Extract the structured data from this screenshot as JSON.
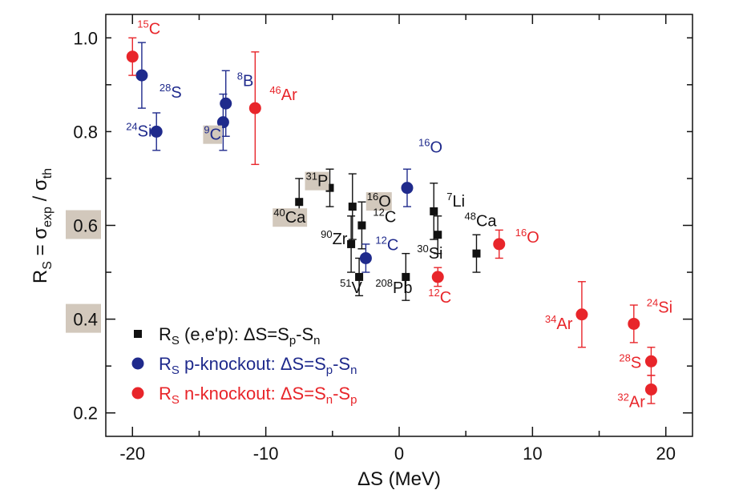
{
  "chart_data": {
    "type": "scatter",
    "xlabel_main": "ΔS (MeV)",
    "ylabel_parts": {
      "main": "R",
      "sub1": "S",
      "eq": " = σ",
      "sub2": "exp",
      "slash": " / σ",
      "sub3": "th"
    },
    "xlim": [
      -22,
      22
    ],
    "ylim": [
      0.15,
      1.05
    ],
    "x_ticks": [
      -20,
      -10,
      0,
      10,
      20
    ],
    "x_tick_labels": [
      "-20",
      "-10",
      "0",
      "10",
      "20"
    ],
    "y_ticks": [
      0.2,
      0.4,
      0.6,
      0.8,
      1.0
    ],
    "y_tick_labels": [
      "0.2",
      "0.4",
      "0.6",
      "0.8",
      "1.0"
    ],
    "highlighted_y_ticks": [
      0.4,
      0.6
    ],
    "highlight_color": "#d2c8bc",
    "colors": {
      "ee": "#111111",
      "p": "#1f2a8c",
      "n": "#e8252a"
    },
    "legend": [
      {
        "series": "ee",
        "r": "R",
        "s": "S",
        "text": "  (e,e'p): ΔS=S",
        "sub1": "p",
        "mid": "-S",
        "sub2": "n"
      },
      {
        "series": "p",
        "r": "R",
        "s": "S",
        "text": "  p-knockout: ΔS=S",
        "sub1": "p",
        "mid": "-S",
        "sub2": "n"
      },
      {
        "series": "n",
        "r": "R",
        "s": "S",
        "text": "  n-knockout: ΔS=S",
        "sub1": "n",
        "mid": "-S",
        "sub2": "p"
      }
    ],
    "series": [
      {
        "key": "ee",
        "marker": "square",
        "points": [
          {
            "x": -7.5,
            "y": 0.65,
            "err": 0.05,
            "mass": "40",
            "el": "Ca",
            "dx": -42,
            "dy": 26,
            "boxed": true
          },
          {
            "x": -5.2,
            "y": 0.68,
            "err": 0.04,
            "mass": "31",
            "el": "P",
            "dx": -40,
            "dy": -2,
            "boxed": true
          },
          {
            "x": -3.5,
            "y": 0.64,
            "err": 0.07,
            "mass": "16",
            "el": "O",
            "dx": 8,
            "dy": 0,
            "boxed": true
          },
          {
            "x": -2.8,
            "y": 0.6,
            "err": 0.05,
            "mass": "12",
            "el": "C",
            "dx": 4,
            "dy": -4,
            "boxed": false
          },
          {
            "x": -3.6,
            "y": 0.56,
            "err": 0.06,
            "mass": "90",
            "el": "Zr",
            "dx": -48,
            "dy": 0,
            "boxed": false
          },
          {
            "x": -3.0,
            "y": 0.49,
            "err": 0.04,
            "mass": "51",
            "el": "V",
            "dx": -34,
            "dy": 20,
            "boxed": false
          },
          {
            "x": 0.5,
            "y": 0.49,
            "err": 0.05,
            "mass": "208",
            "el": "Pb",
            "dx": -48,
            "dy": 20,
            "boxed": false
          },
          {
            "x": 2.6,
            "y": 0.63,
            "err": 0.06,
            "mass": "7",
            "el": "Li",
            "dx": 6,
            "dy": -6,
            "boxed": false
          },
          {
            "x": 2.9,
            "y": 0.58,
            "err": 0.04,
            "mass": "30",
            "el": "Si",
            "dx": -36,
            "dy": 30,
            "boxed": false
          },
          {
            "x": 5.8,
            "y": 0.54,
            "err": 0.04,
            "mass": "48",
            "el": "Ca",
            "dx": -25,
            "dy": -34,
            "boxed": false
          }
        ]
      },
      {
        "key": "p",
        "marker": "circle",
        "points": [
          {
            "x": -19.3,
            "y": 0.92,
            "err": 0.07,
            "mass": "28",
            "el": "S",
            "dx": 12,
            "dy": 28,
            "boxed": false
          },
          {
            "x": -18.2,
            "y": 0.8,
            "err": 0.04,
            "mass": "24",
            "el": "Si",
            "dx": -48,
            "dy": 6,
            "boxed": false
          },
          {
            "x": -13.0,
            "y": 0.86,
            "err": 0.07,
            "mass": "8",
            "el": "B",
            "dx": 4,
            "dy": -22,
            "boxed": false
          },
          {
            "x": -13.2,
            "y": 0.82,
            "err": 0.06,
            "mass": "9",
            "el": "C",
            "dx": -34,
            "dy": 22,
            "boxed": true
          },
          {
            "x": 0.6,
            "y": 0.68,
            "err": 0.04,
            "mass": "16",
            "el": "O",
            "dx": 4,
            "dy": -44,
            "boxed": false
          },
          {
            "x": -2.5,
            "y": 0.53,
            "err": 0.03,
            "mass": "12",
            "el": "C",
            "dx": 2,
            "dy": -10,
            "boxed": false
          }
        ]
      },
      {
        "key": "n",
        "marker": "circle",
        "points": [
          {
            "x": -20.0,
            "y": 0.96,
            "err": 0.04,
            "mass": "15",
            "el": "C",
            "dx": -4,
            "dy": -28,
            "boxed": false
          },
          {
            "x": -10.8,
            "y": 0.85,
            "err": 0.12,
            "mass": "46",
            "el": "Ar",
            "dx": 8,
            "dy": -10,
            "boxed": false
          },
          {
            "x": 2.9,
            "y": 0.49,
            "err": 0.02,
            "mass": "12",
            "el": "C",
            "dx": -22,
            "dy": 32,
            "boxed": false
          },
          {
            "x": 7.5,
            "y": 0.56,
            "err": 0.03,
            "mass": "16",
            "el": "O",
            "dx": 10,
            "dy": -2,
            "boxed": false
          },
          {
            "x": 13.7,
            "y": 0.41,
            "err": 0.07,
            "mass": "34",
            "el": "Ar",
            "dx": -56,
            "dy": 18,
            "boxed": false
          },
          {
            "x": 17.6,
            "y": 0.39,
            "err": 0.04,
            "mass": "24",
            "el": "Si",
            "dx": 6,
            "dy": -14,
            "boxed": false
          },
          {
            "x": 18.9,
            "y": 0.31,
            "err": 0.03,
            "mass": "28",
            "el": "S",
            "dx": -50,
            "dy": 8,
            "boxed": false
          },
          {
            "x": 18.9,
            "y": 0.25,
            "err": 0.03,
            "mass": "32",
            "el": "Ar",
            "dx": -52,
            "dy": 22,
            "boxed": false
          }
        ]
      }
    ]
  }
}
